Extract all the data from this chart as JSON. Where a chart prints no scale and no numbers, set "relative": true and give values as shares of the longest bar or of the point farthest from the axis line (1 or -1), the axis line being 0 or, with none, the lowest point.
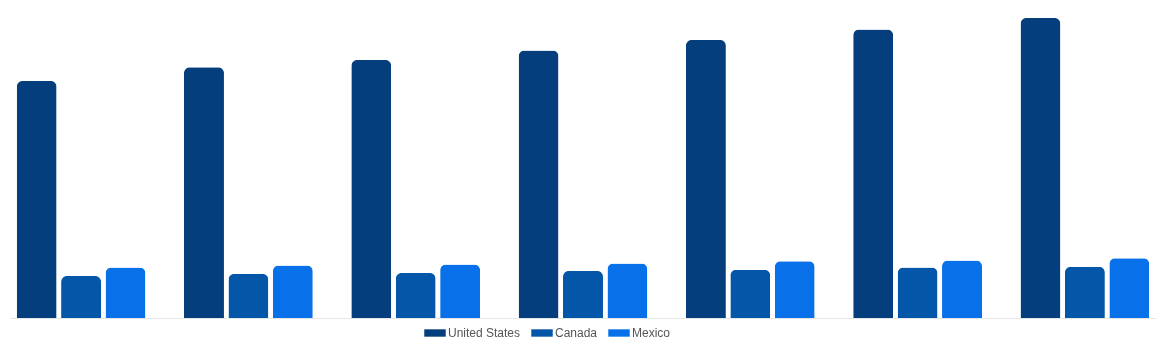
{
  "chart_data": {
    "type": "bar",
    "relative": true,
    "legend": "bottom",
    "categories": [
      null,
      null,
      null,
      null,
      null,
      null,
      null
    ],
    "series": [
      {
        "name": "United States",
        "color": "#043e7d",
        "values": [
          0.79,
          0.836,
          0.86,
          0.892,
          0.927,
          0.962,
          1
        ]
      },
      {
        "name": "Canada",
        "color": "#0356a8",
        "values": [
          0.14,
          0.147,
          0.15,
          0.157,
          0.161,
          0.168,
          0.171
        ]
      },
      {
        "name": "Mexico",
        "color": "#0870e8",
        "values": [
          0.168,
          0.175,
          0.178,
          0.182,
          0.189,
          0.192,
          0.199
        ]
      }
    ]
  }
}
